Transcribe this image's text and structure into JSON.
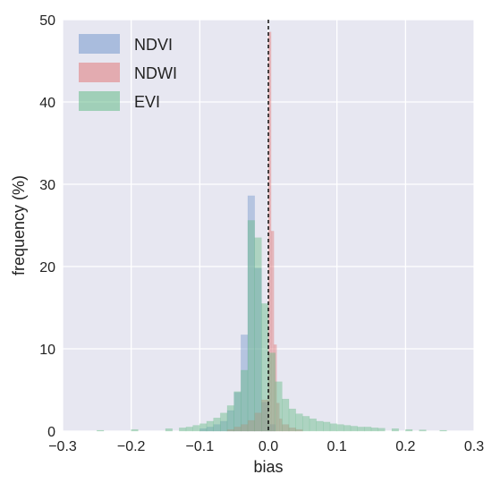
{
  "chart_data": {
    "type": "bar",
    "title": "",
    "xlabel": "bias",
    "ylabel": "frequency (%)",
    "xlim": [
      -0.3,
      0.3
    ],
    "ylim": [
      0,
      50
    ],
    "xticks": [
      -0.3,
      -0.2,
      -0.1,
      0.0,
      0.1,
      0.2,
      0.3
    ],
    "xtick_labels": [
      "−0.3",
      "−0.2",
      "−0.1",
      "0.0",
      "0.1",
      "0.2",
      "0.3"
    ],
    "yticks": [
      0,
      10,
      20,
      30,
      40,
      50
    ],
    "ytick_labels": [
      "0",
      "10",
      "20",
      "30",
      "40",
      "50"
    ],
    "grid": true,
    "legend_position": "top-left",
    "reference_line": {
      "x": 0.0,
      "style": "dashed",
      "color": "#000000"
    },
    "bin_width": 0.01,
    "series": [
      {
        "name": "NDVI",
        "color": "#7799cc",
        "opacity": 0.45,
        "x": [
          -0.1,
          -0.09,
          -0.08,
          -0.07,
          -0.06,
          -0.05,
          -0.04,
          -0.03,
          -0.02,
          -0.01,
          0.0
        ],
        "values": [
          0.3,
          0.5,
          0.8,
          1.2,
          2.5,
          4.7,
          11.7,
          28.6,
          19.8,
          3.5,
          0.8
        ]
      },
      {
        "name": "NDWI",
        "color": "#e07a7a",
        "opacity": 0.45,
        "x": [
          -0.06,
          -0.05,
          -0.04,
          -0.03,
          -0.02,
          -0.01,
          0.0,
          0.004,
          0.008,
          0.012,
          0.016,
          0.02,
          0.03,
          0.04
        ],
        "values": [
          0.2,
          0.5,
          0.8,
          1.3,
          2.2,
          3.8,
          48.5,
          24.3,
          10.5,
          3.4,
          1.5,
          0.8,
          0.4,
          0.2
        ]
      },
      {
        "name": "EVI",
        "color": "#66bb88",
        "opacity": 0.45,
        "x": [
          -0.25,
          -0.2,
          -0.15,
          -0.13,
          -0.12,
          -0.11,
          -0.1,
          -0.09,
          -0.08,
          -0.07,
          -0.06,
          -0.05,
          -0.04,
          -0.03,
          -0.02,
          -0.01,
          0.0,
          0.01,
          0.02,
          0.03,
          0.04,
          0.05,
          0.06,
          0.07,
          0.08,
          0.09,
          0.1,
          0.11,
          0.12,
          0.13,
          0.14,
          0.15,
          0.16,
          0.18,
          0.2,
          0.22,
          0.25
        ],
        "values": [
          0.1,
          0.2,
          0.3,
          0.4,
          0.5,
          0.7,
          0.9,
          1.2,
          1.6,
          2.2,
          3.1,
          4.8,
          7.4,
          25.6,
          23.5,
          15.5,
          9.5,
          6.0,
          3.9,
          2.7,
          2.1,
          1.8,
          1.5,
          1.2,
          1.1,
          0.9,
          0.8,
          0.7,
          0.6,
          0.5,
          0.5,
          0.4,
          0.35,
          0.3,
          0.2,
          0.15,
          0.1
        ]
      }
    ]
  }
}
